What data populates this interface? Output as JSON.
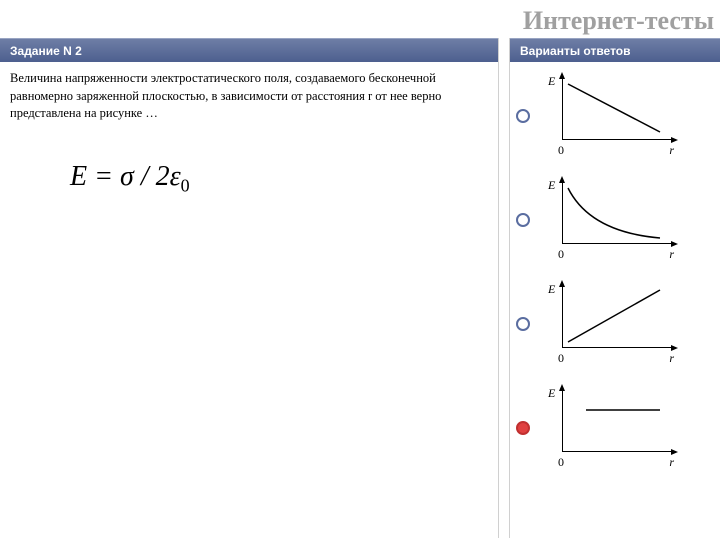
{
  "title": "Интернет-тесты",
  "left": {
    "header": "Задание N 2",
    "question": "Величина напряженности электростатического поля, создаваемого бесконечной равномерно заряженной плоскостью, в зависимости от расстояния r от нее верно представлена на рисунке …",
    "formula_html": "<span style='font-style:italic'>E</span> = <span style='font-style:italic'>σ</span> / 2<span style='font-style:italic'>ε</span><span class='sub'>0</span>"
  },
  "right": {
    "header": "Варианты ответов",
    "axis": {
      "y_label": "E",
      "x_label": "r",
      "origin": "0"
    },
    "colors": {
      "header_bg_top": "#6e7ea6",
      "header_bg_bottom": "#4d5f8f",
      "radio_border": "#5a6da0",
      "radio_selected": "#e04040"
    },
    "answers": [
      {
        "id": "opt-1",
        "selected": false,
        "shape": "line-down",
        "svg": "<svg width='140' height='92'><line x1='28' y1='14' x2='120' y2='62' stroke='#000' stroke-width='1.5'/></svg>"
      },
      {
        "id": "opt-2",
        "selected": false,
        "shape": "curve-decay",
        "svg": "<svg width='140' height='92'><path d='M28 14 Q 50 58 120 64' stroke='#000' stroke-width='1.5' fill='none'/></svg>"
      },
      {
        "id": "opt-3",
        "selected": false,
        "shape": "line-up",
        "svg": "<svg width='140' height='92'><line x1='28' y1='64' x2='120' y2='12' stroke='#000' stroke-width='1.5'/></svg>"
      },
      {
        "id": "opt-4",
        "selected": true,
        "shape": "flat",
        "svg": "<svg width='140' height='92'><line x1='46' y1='28' x2='120' y2='28' stroke='#000' stroke-width='1.5'/></svg>"
      }
    ]
  }
}
